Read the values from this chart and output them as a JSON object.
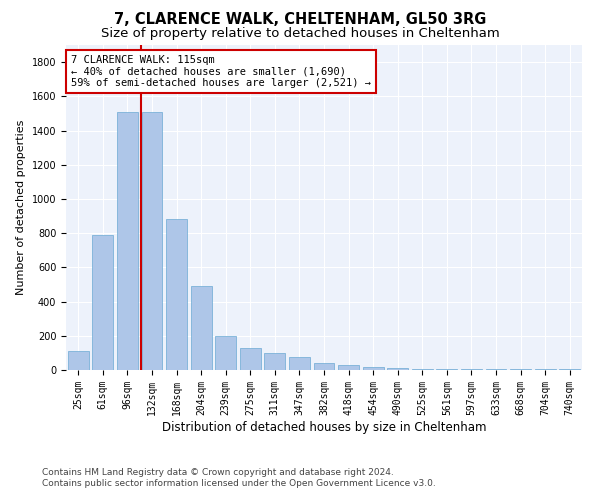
{
  "title": "7, CLARENCE WALK, CHELTENHAM, GL50 3RG",
  "subtitle": "Size of property relative to detached houses in Cheltenham",
  "xlabel": "Distribution of detached houses by size in Cheltenham",
  "ylabel": "Number of detached properties",
  "categories": [
    "25sqm",
    "61sqm",
    "96sqm",
    "132sqm",
    "168sqm",
    "204sqm",
    "239sqm",
    "275sqm",
    "311sqm",
    "347sqm",
    "382sqm",
    "418sqm",
    "454sqm",
    "490sqm",
    "525sqm",
    "561sqm",
    "597sqm",
    "633sqm",
    "668sqm",
    "704sqm",
    "740sqm"
  ],
  "values": [
    110,
    790,
    1510,
    1510,
    880,
    490,
    200,
    130,
    100,
    75,
    40,
    30,
    20,
    10,
    5,
    5,
    5,
    5,
    5,
    5,
    5
  ],
  "bar_color": "#aec6e8",
  "bar_edge_color": "#6aaad4",
  "vline_color": "#cc0000",
  "vline_x": 2.57,
  "annotation_text": "7 CLARENCE WALK: 115sqm\n← 40% of detached houses are smaller (1,690)\n59% of semi-detached houses are larger (2,521) →",
  "annotation_box_color": "#ffffff",
  "annotation_box_edge_color": "#cc0000",
  "footer_text": "Contains HM Land Registry data © Crown copyright and database right 2024.\nContains public sector information licensed under the Open Government Licence v3.0.",
  "ylim": [
    0,
    1900
  ],
  "yticks": [
    0,
    200,
    400,
    600,
    800,
    1000,
    1200,
    1400,
    1600,
    1800
  ],
  "bg_color": "#edf2fb",
  "fig_bg_color": "#ffffff",
  "title_fontsize": 10.5,
  "subtitle_fontsize": 9.5,
  "xlabel_fontsize": 8.5,
  "ylabel_fontsize": 8,
  "tick_fontsize": 7,
  "footer_fontsize": 6.5,
  "ann_fontsize": 7.5
}
